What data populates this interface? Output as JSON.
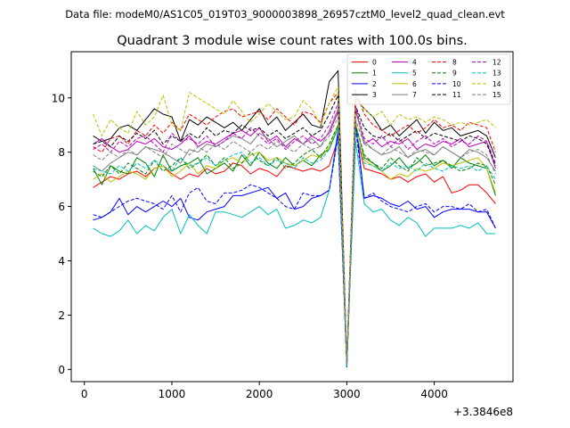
{
  "suptitle": "Data file: modeM0/AS1C05_019T03_9000003898_26957cztM0_level2_quad_clean.evt",
  "chart_data": {
    "type": "line",
    "title": "Quadrant 3 module wise count rates with 100.0s bins.",
    "xlabel": "",
    "ylabel": "",
    "offset_label": "+3.3846e8",
    "xlim": [
      -150,
      4900
    ],
    "ylim": [
      -0.45,
      11.7
    ],
    "xticks": [
      0,
      1000,
      2000,
      3000,
      4000
    ],
    "yticks": [
      0,
      2,
      4,
      6,
      8,
      10
    ],
    "legend_position": "top-right",
    "x": [
      100,
      200,
      300,
      400,
      500,
      600,
      700,
      800,
      900,
      1000,
      1100,
      1200,
      1300,
      1400,
      1500,
      1600,
      1700,
      1800,
      1900,
      2000,
      2100,
      2200,
      2300,
      2400,
      2500,
      2600,
      2700,
      2800,
      2900,
      3000,
      3100,
      3200,
      3300,
      3400,
      3500,
      3600,
      3700,
      3800,
      3900,
      4000,
      4100,
      4200,
      4300,
      4400,
      4500,
      4600,
      4700
    ],
    "series": [
      {
        "name": "0",
        "color": "#ff0000",
        "dash": "solid",
        "values": [
          6.7,
          6.9,
          7.1,
          7.0,
          7.2,
          7.3,
          7.1,
          7.4,
          7.5,
          7.2,
          7.0,
          7.2,
          7.1,
          7.4,
          7.2,
          7.3,
          7.6,
          7.5,
          7.2,
          7.4,
          7.3,
          7.1,
          7.5,
          7.4,
          7.3,
          7.4,
          7.3,
          7.5,
          8.5,
          0.2,
          8.8,
          7.4,
          7.3,
          7.2,
          7.0,
          7.1,
          6.9,
          7.1,
          7.2,
          6.9,
          7.1,
          6.5,
          6.6,
          6.8,
          6.8,
          6.5,
          6.1
        ]
      },
      {
        "name": "1",
        "color": "#008000",
        "dash": "solid",
        "values": [
          7.4,
          6.8,
          7.5,
          7.3,
          7.2,
          7.8,
          7.6,
          7.1,
          7.9,
          7.3,
          7.5,
          7.6,
          7.8,
          7.2,
          7.4,
          7.6,
          7.3,
          7.9,
          7.5,
          8.0,
          7.6,
          7.4,
          7.8,
          7.5,
          7.7,
          7.5,
          7.9,
          8.1,
          8.9,
          0.1,
          9.0,
          7.8,
          7.6,
          7.3,
          7.5,
          7.8,
          7.4,
          7.6,
          7.9,
          7.5,
          7.7,
          7.4,
          7.8,
          7.6,
          7.5,
          7.4,
          6.4
        ]
      },
      {
        "name": "2",
        "color": "#0000ff",
        "dash": "solid",
        "values": [
          5.5,
          5.6,
          5.8,
          6.3,
          5.7,
          6.0,
          5.8,
          6.0,
          6.2,
          6.0,
          6.3,
          5.6,
          5.5,
          5.8,
          5.9,
          6.0,
          6.4,
          6.4,
          6.5,
          6.6,
          6.7,
          6.3,
          6.5,
          5.9,
          6.0,
          6.3,
          6.4,
          6.6,
          8.8,
          0.1,
          9.2,
          6.3,
          6.4,
          6.3,
          6.1,
          6.0,
          6.2,
          5.9,
          6.0,
          5.6,
          5.8,
          5.9,
          5.9,
          5.9,
          5.8,
          5.8,
          5.2
        ]
      },
      {
        "name": "3",
        "color": "#000000",
        "dash": "solid",
        "values": [
          8.6,
          8.4,
          8.5,
          8.9,
          9.0,
          8.8,
          9.2,
          9.6,
          9.4,
          9.3,
          8.4,
          9.2,
          9.0,
          9.3,
          9.1,
          8.9,
          9.1,
          8.8,
          9.2,
          9.6,
          9.0,
          9.3,
          8.8,
          9.1,
          9.4,
          9.0,
          8.9,
          10.6,
          11.0,
          0.3,
          10.0,
          9.6,
          9.3,
          8.8,
          9.0,
          8.6,
          8.9,
          9.2,
          8.7,
          9.1,
          8.8,
          8.9,
          8.6,
          8.7,
          8.8,
          8.6,
          7.8
        ]
      },
      {
        "name": "4",
        "color": "#bf00bf",
        "dash": "solid",
        "values": [
          8.3,
          8.5,
          8.2,
          8.0,
          8.1,
          8.4,
          8.3,
          8.5,
          8.2,
          8.1,
          8.3,
          8.6,
          8.2,
          8.4,
          8.3,
          8.5,
          8.7,
          8.8,
          8.6,
          8.9,
          8.4,
          8.6,
          8.2,
          8.5,
          8.3,
          8.6,
          8.4,
          8.7,
          9.5,
          0.2,
          9.6,
          8.3,
          8.5,
          8.2,
          8.4,
          8.3,
          8.5,
          8.1,
          8.3,
          8.2,
          8.4,
          8.3,
          8.5,
          8.2,
          8.3,
          8.4,
          7.4
        ]
      },
      {
        "name": "5",
        "color": "#00bfbf",
        "dash": "solid",
        "values": [
          5.2,
          5.0,
          4.9,
          5.1,
          5.5,
          5.0,
          5.3,
          5.1,
          5.6,
          5.9,
          5.0,
          5.7,
          5.3,
          5.0,
          5.8,
          5.8,
          5.7,
          5.6,
          5.8,
          6.0,
          5.7,
          5.9,
          5.2,
          5.3,
          5.5,
          5.4,
          5.6,
          6.6,
          8.6,
          0.1,
          8.4,
          6.1,
          5.8,
          5.9,
          5.5,
          5.3,
          5.6,
          5.4,
          4.9,
          5.2,
          5.2,
          5.2,
          5.3,
          5.2,
          5.4,
          5.0,
          5.0
        ]
      },
      {
        "name": "6",
        "color": "#bfbf00",
        "dash": "solid",
        "values": [
          7.0,
          7.2,
          6.9,
          7.1,
          7.3,
          7.2,
          7.0,
          7.4,
          7.5,
          7.1,
          7.3,
          7.6,
          7.2,
          7.5,
          7.4,
          7.7,
          7.8,
          7.6,
          7.9,
          8.0,
          7.7,
          7.8,
          7.6,
          7.5,
          7.7,
          7.9,
          7.8,
          8.2,
          9.0,
          0.2,
          9.1,
          7.7,
          7.5,
          7.3,
          7.0,
          7.2,
          7.1,
          7.4,
          7.3,
          7.4,
          7.6,
          7.5,
          7.6,
          7.7,
          7.8,
          7.4,
          6.5
        ]
      },
      {
        "name": "7",
        "color": "#808080",
        "dash": "solid",
        "values": [
          7.5,
          7.3,
          7.6,
          7.8,
          8.0,
          7.9,
          8.2,
          8.1,
          8.0,
          7.8,
          7.6,
          8.1,
          8.0,
          8.3,
          8.2,
          8.4,
          8.6,
          8.5,
          8.3,
          8.7,
          8.5,
          8.2,
          8.4,
          8.6,
          8.3,
          8.5,
          8.2,
          8.8,
          9.6,
          0.2,
          9.5,
          8.4,
          8.1,
          7.9,
          8.0,
          8.2,
          7.8,
          8.0,
          8.1,
          7.9,
          8.2,
          8.0,
          7.8,
          8.1,
          8.0,
          7.8,
          7.3
        ]
      },
      {
        "name": "8",
        "color": "#ff0000",
        "dash": "dashed",
        "values": [
          8.2,
          8.0,
          8.5,
          8.6,
          8.3,
          8.8,
          8.6,
          9.0,
          8.7,
          9.1,
          8.8,
          9.4,
          9.2,
          9.0,
          9.3,
          9.5,
          9.6,
          9.3,
          9.4,
          9.5,
          9.2,
          9.6,
          9.3,
          9.0,
          9.5,
          9.4,
          9.1,
          9.8,
          10.2,
          0.2,
          10.3,
          9.4,
          9.0,
          8.8,
          8.6,
          8.8,
          9.0,
          8.7,
          8.9,
          9.2,
          8.9,
          9.0,
          8.8,
          9.1,
          9.0,
          8.9,
          8.0
        ]
      },
      {
        "name": "9",
        "color": "#008000",
        "dash": "dashed",
        "values": [
          7.3,
          7.1,
          7.5,
          7.2,
          7.6,
          7.4,
          7.2,
          7.7,
          7.3,
          7.5,
          7.8,
          7.4,
          7.6,
          7.9,
          7.5,
          7.8,
          7.4,
          7.6,
          8.0,
          7.7,
          7.5,
          7.8,
          7.4,
          7.6,
          7.9,
          8.1,
          7.8,
          8.3,
          9.0,
          0.1,
          9.0,
          7.9,
          7.6,
          7.4,
          7.8,
          7.5,
          7.3,
          7.8,
          7.5,
          7.6,
          7.7,
          7.5,
          7.3,
          7.4,
          7.6,
          7.5,
          6.8
        ]
      },
      {
        "name": "10",
        "color": "#0000ff",
        "dash": "dashed",
        "values": [
          5.7,
          5.6,
          5.8,
          6.0,
          6.2,
          6.3,
          6.2,
          6.1,
          5.9,
          6.4,
          5.8,
          6.5,
          6.7,
          6.2,
          6.1,
          6.5,
          6.5,
          6.6,
          6.8,
          6.7,
          6.5,
          6.3,
          6.0,
          5.9,
          6.5,
          6.4,
          6.4,
          6.6,
          8.6,
          0.1,
          8.9,
          6.3,
          6.5,
          6.2,
          6.0,
          5.9,
          5.8,
          6.0,
          6.1,
          5.8,
          6.0,
          6.0,
          5.9,
          6.1,
          5.8,
          5.9,
          5.2
        ]
      },
      {
        "name": "11",
        "color": "#000000",
        "dash": "dashed",
        "values": [
          8.3,
          8.4,
          8.2,
          8.6,
          8.4,
          8.7,
          8.5,
          8.8,
          8.3,
          8.6,
          8.4,
          8.7,
          8.5,
          8.9,
          8.6,
          8.8,
          8.7,
          9.0,
          8.8,
          8.9,
          8.6,
          8.8,
          8.5,
          8.7,
          8.9,
          8.6,
          8.8,
          9.4,
          10.1,
          0.2,
          9.7,
          8.9,
          8.6,
          8.5,
          8.7,
          8.4,
          8.6,
          8.8,
          8.5,
          8.7,
          8.6,
          8.5,
          8.4,
          8.6,
          8.5,
          8.3,
          7.5
        ]
      },
      {
        "name": "12",
        "color": "#bf00bf",
        "dash": "dashed",
        "values": [
          8.1,
          8.3,
          8.0,
          8.4,
          8.2,
          8.5,
          8.6,
          8.3,
          8.0,
          8.7,
          8.4,
          8.5,
          8.3,
          8.6,
          8.2,
          8.4,
          8.7,
          8.5,
          8.9,
          8.6,
          8.3,
          8.5,
          8.1,
          8.4,
          8.6,
          8.3,
          8.5,
          9.0,
          9.8,
          0.2,
          9.7,
          8.5,
          8.3,
          8.6,
          8.2,
          8.5,
          8.1,
          8.4,
          8.6,
          8.3,
          8.5,
          8.2,
          8.4,
          8.3,
          8.6,
          8.4,
          7.6
        ]
      },
      {
        "name": "13",
        "color": "#00bfbf",
        "dash": "dashed",
        "values": [
          7.4,
          7.3,
          7.2,
          7.5,
          7.3,
          7.6,
          7.4,
          7.7,
          7.5,
          7.3,
          7.8,
          7.5,
          7.6,
          7.8,
          7.5,
          7.7,
          7.9,
          8.0,
          7.6,
          7.8,
          7.5,
          7.7,
          7.6,
          7.4,
          7.8,
          7.6,
          7.7,
          8.1,
          8.9,
          0.1,
          8.8,
          7.6,
          7.5,
          7.3,
          7.6,
          7.4,
          7.5,
          7.3,
          7.6,
          7.4,
          7.3,
          7.5,
          7.4,
          7.5,
          7.3,
          7.5,
          7.0
        ]
      },
      {
        "name": "14",
        "color": "#bfbf00",
        "dash": "dashed",
        "values": [
          9.4,
          8.6,
          9.2,
          8.9,
          8.7,
          9.5,
          9.0,
          9.3,
          10.1,
          9.0,
          8.8,
          10.2,
          10.0,
          9.8,
          9.6,
          9.4,
          9.9,
          9.5,
          9.1,
          9.4,
          9.8,
          9.5,
          9.2,
          9.3,
          9.9,
          9.6,
          9.0,
          9.8,
          10.4,
          0.3,
          10.0,
          9.6,
          9.3,
          9.5,
          9.0,
          9.4,
          9.2,
          9.3,
          9.1,
          9.3,
          9.2,
          9.0,
          9.1,
          9.0,
          9.1,
          9.2,
          8.9
        ]
      },
      {
        "name": "15",
        "color": "#808080",
        "dash": "dashed",
        "values": [
          7.9,
          7.7,
          8.0,
          7.8,
          8.1,
          7.9,
          8.2,
          8.0,
          7.8,
          8.3,
          8.1,
          7.9,
          8.2,
          8.0,
          8.3,
          8.1,
          8.4,
          8.2,
          8.0,
          8.3,
          8.1,
          8.4,
          8.2,
          8.0,
          8.3,
          8.1,
          8.2,
          8.6,
          9.3,
          0.2,
          9.2,
          8.3,
          8.1,
          7.9,
          8.2,
          8.0,
          7.8,
          8.1,
          8.0,
          7.9,
          8.2,
          8.0,
          7.8,
          8.0,
          8.1,
          7.9,
          7.2
        ]
      }
    ]
  }
}
